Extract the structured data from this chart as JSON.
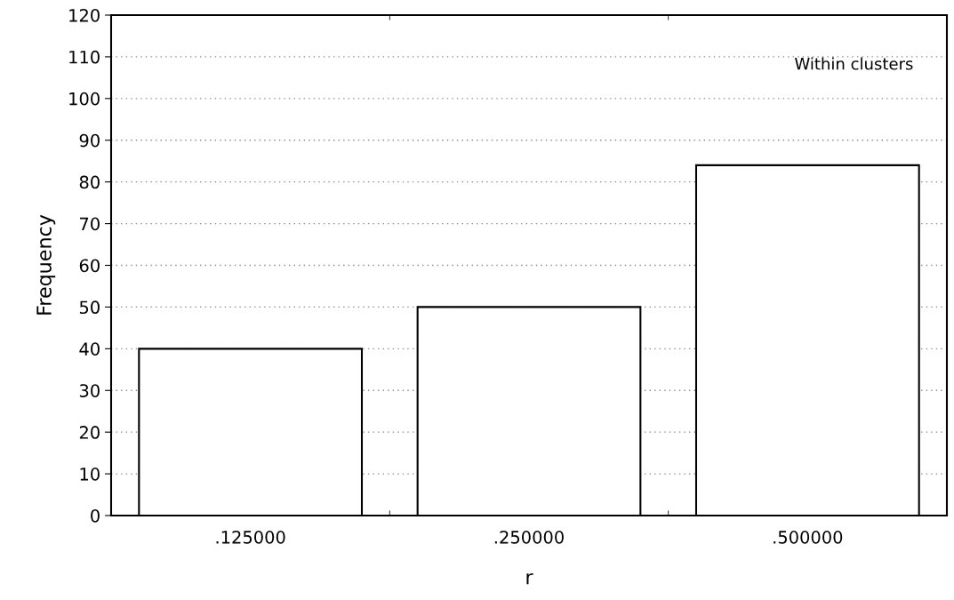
{
  "chart_data": {
    "type": "bar",
    "xlabel": "r",
    "ylabel": "Frequency",
    "categories": [
      ".125000",
      ".250000",
      ".500000"
    ],
    "values": [
      40,
      50,
      84
    ],
    "color": "#ffffff",
    "ylim": [
      0,
      120
    ],
    "yticks": [
      0,
      10,
      20,
      30,
      40,
      50,
      60,
      70,
      80,
      90,
      100,
      110,
      120
    ],
    "grid": "y",
    "annotations": [
      "Within clusters"
    ]
  }
}
